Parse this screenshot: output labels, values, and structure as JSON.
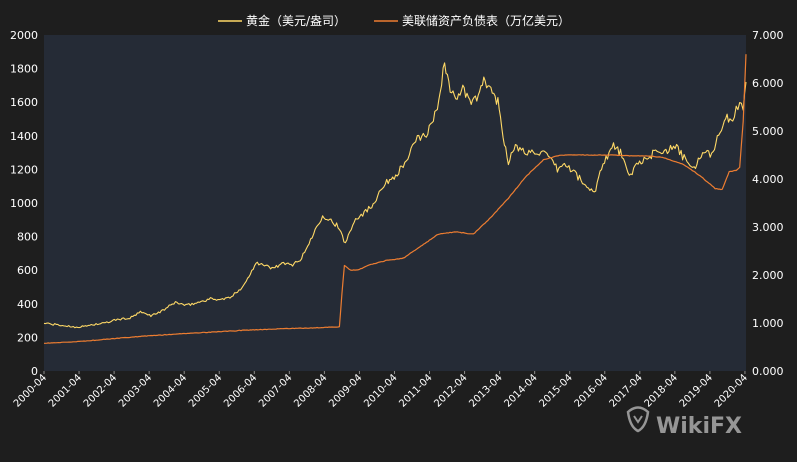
{
  "chart_data": {
    "type": "line",
    "title": "",
    "colors": {
      "background": "#1e1e1e",
      "plot_area": "#252b36",
      "gold": "#ffd966",
      "fed": "#ed7d31",
      "text": "#ffffff"
    },
    "legend": {
      "placement": "top-center",
      "items": [
        "黄金（美元/盎司）",
        "美联储资产负债表（万亿美元）"
      ]
    },
    "x_ticks": [
      "2000-04",
      "2001-04",
      "2002-04",
      "2003-04",
      "2004-04",
      "2005-04",
      "2006-04",
      "2007-04",
      "2008-04",
      "2009-04",
      "2010-04",
      "2011-04",
      "2012-04",
      "2013-04",
      "2014-04",
      "2015-04",
      "2016-04",
      "2017-04",
      "2018-04",
      "2019-04",
      "2020-04"
    ],
    "y_left": {
      "min": 0,
      "max": 2000,
      "ticks": [
        "0",
        "200",
        "400",
        "600",
        "800",
        "1000",
        "1200",
        "1400",
        "1600",
        "1800",
        "2000"
      ]
    },
    "y_right": {
      "min": 0,
      "max": 7,
      "ticks": [
        "0.000",
        "1.000",
        "2.000",
        "3.000",
        "4.000",
        "5.000",
        "6.000",
        "7.000"
      ]
    },
    "grid": false,
    "series": [
      {
        "name": "黄金（美元/盎司）",
        "axis": "left",
        "x": [
          2000.25,
          2000.6,
          2001.0,
          2001.3,
          2001.6,
          2002.0,
          2002.3,
          2002.7,
          2003.0,
          2003.3,
          2003.6,
          2004.0,
          2004.3,
          2004.6,
          2005.0,
          2005.3,
          2005.6,
          2005.9,
          2006.1,
          2006.3,
          2006.5,
          2006.8,
          2007.0,
          2007.3,
          2007.6,
          2007.9,
          2008.2,
          2008.4,
          2008.6,
          2008.85,
          2009.1,
          2009.3,
          2009.6,
          2009.9,
          2010.2,
          2010.5,
          2010.9,
          2011.2,
          2011.4,
          2011.55,
          2011.68,
          2011.8,
          2012.0,
          2012.2,
          2012.4,
          2012.6,
          2012.8,
          2013.0,
          2013.2,
          2013.35,
          2013.5,
          2013.7,
          2014.0,
          2014.3,
          2014.6,
          2014.9,
          2015.1,
          2015.4,
          2015.7,
          2015.95,
          2016.2,
          2016.5,
          2016.7,
          2016.95,
          2017.2,
          2017.5,
          2017.7,
          2017.95,
          2018.3,
          2018.6,
          2018.8,
          2019.0,
          2019.3,
          2019.5,
          2019.7,
          2019.9,
          2020.0,
          2020.1,
          2020.2,
          2020.28
        ],
        "y": [
          285,
          275,
          265,
          262,
          275,
          285,
          305,
          315,
          350,
          330,
          355,
          410,
          390,
          405,
          430,
          425,
          440,
          500,
          560,
          650,
          630,
          610,
          640,
          630,
          670,
          800,
          930,
          900,
          870,
          760,
          900,
          930,
          980,
          1100,
          1150,
          1220,
          1380,
          1420,
          1520,
          1650,
          1850,
          1700,
          1620,
          1680,
          1600,
          1620,
          1720,
          1680,
          1600,
          1400,
          1250,
          1330,
          1300,
          1310,
          1280,
          1200,
          1230,
          1180,
          1100,
          1060,
          1240,
          1340,
          1300,
          1150,
          1250,
          1250,
          1320,
          1310,
          1330,
          1240,
          1200,
          1290,
          1290,
          1410,
          1510,
          1470,
          1560,
          1600,
          1570,
          1720
        ]
      },
      {
        "name": "美联储资产负债表（万亿美元）",
        "axis": "right",
        "x": [
          2000.25,
          2001.0,
          2002.0,
          2003.0,
          2004.0,
          2005.0,
          2006.0,
          2007.0,
          2008.0,
          2008.68,
          2008.75,
          2008.82,
          2008.9,
          2009.0,
          2009.2,
          2009.5,
          2010.0,
          2010.5,
          2011.0,
          2011.5,
          2012.0,
          2012.5,
          2013.0,
          2013.5,
          2014.0,
          2014.5,
          2015.0,
          2015.5,
          2016.0,
          2016.5,
          2017.0,
          2017.5,
          2017.9,
          2018.5,
          2019.0,
          2019.4,
          2019.6,
          2019.8,
          2020.0,
          2020.1,
          2020.2,
          2020.28
        ],
        "y": [
          0.58,
          0.6,
          0.66,
          0.72,
          0.77,
          0.81,
          0.85,
          0.88,
          0.9,
          0.92,
          1.6,
          2.2,
          2.15,
          2.1,
          2.1,
          2.2,
          2.3,
          2.35,
          2.6,
          2.85,
          2.9,
          2.85,
          3.2,
          3.6,
          4.05,
          4.4,
          4.5,
          4.5,
          4.5,
          4.5,
          4.48,
          4.48,
          4.45,
          4.3,
          4.05,
          3.8,
          3.78,
          4.15,
          4.18,
          4.25,
          5.2,
          6.6
        ]
      }
    ]
  },
  "watermark": {
    "text": "WikiFX"
  }
}
